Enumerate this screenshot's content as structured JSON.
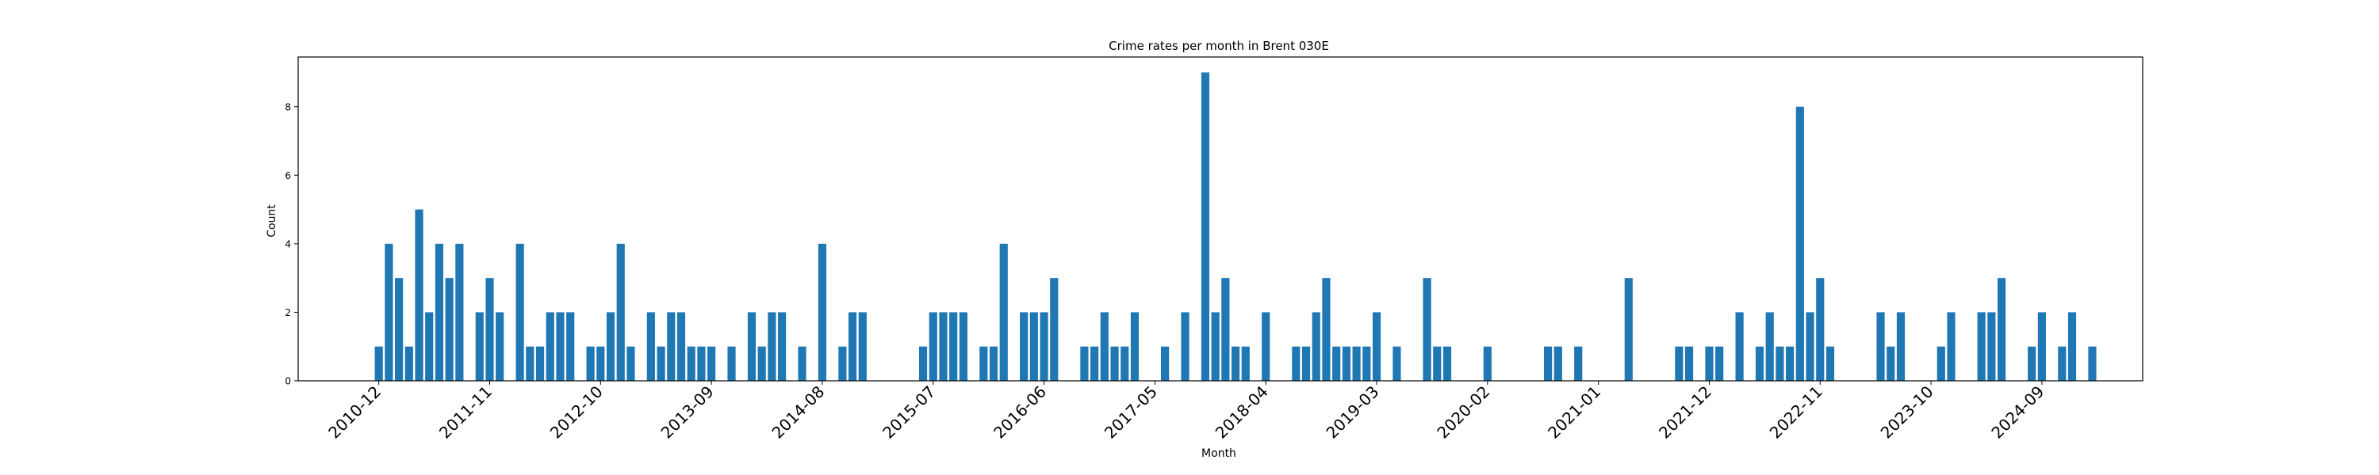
{
  "chart_data": {
    "type": "bar",
    "title": "Crime rates per month in Brent 030E",
    "xlabel": "Month",
    "ylabel": "Count",
    "ylim": [
      0,
      9.45
    ],
    "yticks": [
      0,
      2,
      4,
      6,
      8
    ],
    "xtick_labels": [
      "2010-12",
      "2011-11",
      "2012-10",
      "2013-09",
      "2014-08",
      "2015-07",
      "2016-06",
      "2017-05",
      "2018-04",
      "2019-03",
      "2020-02",
      "2021-01",
      "2021-12",
      "2022-11",
      "2023-10",
      "2024-09"
    ],
    "grid": false,
    "bar_color": "#1f77b4",
    "months": [
      "2010-12",
      "2011-01",
      "2011-02",
      "2011-03",
      "2011-04",
      "2011-05",
      "2011-06",
      "2011-07",
      "2011-08",
      "2011-10",
      "2011-11",
      "2011-12",
      "2012-02",
      "2012-03",
      "2012-04",
      "2012-05",
      "2012-06",
      "2012-07",
      "2012-09",
      "2012-10",
      "2012-11",
      "2012-12",
      "2013-01",
      "2013-03",
      "2013-04",
      "2013-05",
      "2013-06",
      "2013-07",
      "2013-08",
      "2013-09",
      "2013-11",
      "2014-01",
      "2014-02",
      "2014-03",
      "2014-04",
      "2014-06",
      "2014-08",
      "2014-10",
      "2014-11",
      "2014-12",
      "2015-06",
      "2015-07",
      "2015-08",
      "2015-09",
      "2015-10",
      "2015-12",
      "2016-01",
      "2016-02",
      "2016-04",
      "2016-05",
      "2016-06",
      "2016-07",
      "2016-10",
      "2016-11",
      "2016-12",
      "2017-01",
      "2017-02",
      "2017-03",
      "2017-06",
      "2017-08",
      "2017-10",
      "2017-11",
      "2017-12",
      "2018-01",
      "2018-02",
      "2018-04",
      "2018-07",
      "2018-08",
      "2018-09",
      "2018-10",
      "2018-11",
      "2018-12",
      "2019-01",
      "2019-02",
      "2019-03",
      "2019-05",
      "2019-08",
      "2019-09",
      "2019-10",
      "2020-02",
      "2020-08",
      "2020-09",
      "2020-11",
      "2021-04",
      "2021-09",
      "2021-10",
      "2021-12",
      "2022-01",
      "2022-03",
      "2022-05",
      "2022-06",
      "2022-07",
      "2022-08",
      "2022-09",
      "2022-10",
      "2022-11",
      "2022-12",
      "2023-05",
      "2023-06",
      "2023-07",
      "2023-11",
      "2023-12",
      "2024-03",
      "2024-04",
      "2024-05",
      "2024-08",
      "2024-09",
      "2024-11",
      "2024-12",
      "2025-02"
    ],
    "values": [
      1,
      4,
      3,
      1,
      5,
      2,
      4,
      3,
      4,
      2,
      3,
      2,
      4,
      1,
      1,
      2,
      2,
      2,
      1,
      1,
      2,
      4,
      1,
      2,
      1,
      2,
      2,
      1,
      1,
      1,
      1,
      2,
      1,
      2,
      2,
      1,
      4,
      1,
      2,
      2,
      1,
      2,
      2,
      2,
      2,
      1,
      1,
      4,
      2,
      2,
      2,
      3,
      1,
      1,
      2,
      1,
      1,
      2,
      1,
      2,
      9,
      2,
      3,
      1,
      1,
      2,
      1,
      1,
      2,
      3,
      1,
      1,
      1,
      1,
      2,
      1,
      3,
      1,
      1,
      1,
      1,
      1,
      1,
      3,
      1,
      1,
      1,
      1,
      2,
      1,
      2,
      1,
      1,
      8,
      2,
      3,
      1,
      2,
      1,
      2,
      1,
      2,
      2,
      2,
      3,
      1,
      2,
      1,
      2,
      1
    ]
  }
}
